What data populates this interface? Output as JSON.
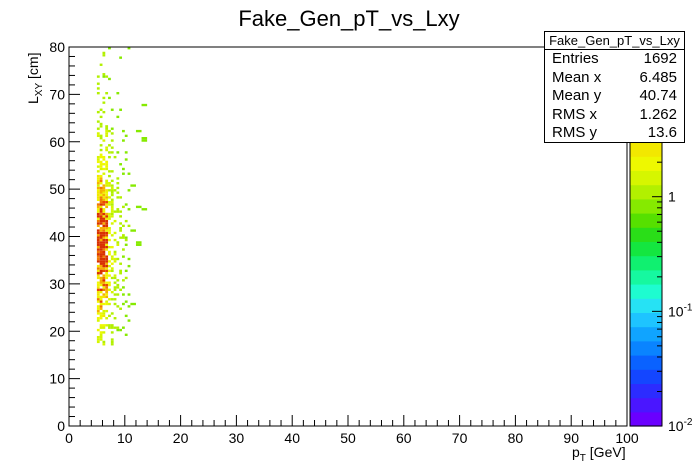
{
  "chart_data": {
    "type": "heatmap",
    "title": "Fake_Gen_pT_vs_Lxy",
    "xlabel_main": "p",
    "xlabel_sub": "T",
    "xlabel_unit": " [GeV]",
    "ylabel_main": "L",
    "ylabel_sub": "XY",
    "ylabel_unit": " [cm]",
    "xlim": [
      0,
      100
    ],
    "ylim": [
      0,
      80
    ],
    "xticks": [
      "0",
      "10",
      "20",
      "30",
      "40",
      "50",
      "60",
      "70",
      "80",
      "90",
      "100"
    ],
    "yticks": [
      "0",
      "10",
      "20",
      "30",
      "40",
      "50",
      "60",
      "70",
      "80"
    ],
    "zscale": "log",
    "zlim": [
      0.01,
      3
    ],
    "ztick_mantissa": [
      "10",
      "10",
      "1"
    ],
    "ztick_exp": [
      "-2",
      "-1",
      ""
    ],
    "grid": false,
    "palette": [
      "#6a00ff",
      "#4a16ff",
      "#2c2cff",
      "#1446ff",
      "#0a62ff",
      "#0a84ff",
      "#10a4ff",
      "#1ec4ff",
      "#26e2f4",
      "#1efcd0",
      "#16f8a0",
      "#10f070",
      "#14e640",
      "#2ade18",
      "#56e000",
      "#86ea00",
      "#b2f000",
      "#d6f600",
      "#eef800"
    ],
    "hot_palette": [
      "#f2e800",
      "#f6b000",
      "#f07a00",
      "#e84a00",
      "#d83000"
    ],
    "x_bins": [
      5.25,
      5.75,
      6.25,
      6.75,
      7.25,
      7.75,
      8.25,
      8.75,
      9.25,
      9.75,
      10.25,
      10.75,
      11.5,
      12.5,
      13.5
    ],
    "region": {
      "y_from": 17,
      "y_to": 80,
      "weights": [
        0.9,
        1.0,
        0.95,
        0.85,
        0.75,
        0.6,
        0.5,
        0.4,
        0.32,
        0.26,
        0.2,
        0.16,
        0.12,
        0.08,
        0.05
      ]
    },
    "density_peak_y": 38,
    "stats": {
      "title": "Fake_Gen_pT_vs_Lxy",
      "entries_label": "Entries",
      "entries": "1692",
      "meanx_label": "Mean x",
      "meanx": "6.485",
      "meany_label": "Mean y",
      "meany": "40.74",
      "rmsx_label": "RMS x",
      "rmsx": "1.262",
      "rmsy_label": "RMS y",
      "rmsy": "13.6"
    }
  }
}
